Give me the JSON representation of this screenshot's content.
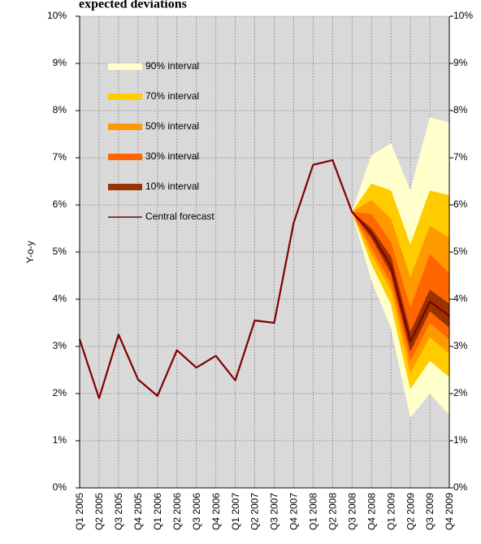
{
  "chart_data": {
    "type": "fan",
    "title": "expected deviations",
    "y_label": "Y-o-y",
    "categories": [
      "Q1 2005",
      "Q2 2005",
      "Q3 2005",
      "Q4 2005",
      "Q1 2006",
      "Q2 2006",
      "Q3 2006",
      "Q4 2006",
      "Q1 2007",
      "Q2 2007",
      "Q3 2007",
      "Q4 2007",
      "Q1 2008",
      "Q2 2008",
      "Q3 2008",
      "Q4 2008",
      "Q1 2009",
      "Q2 2009",
      "Q3 2009",
      "Q4 2009"
    ],
    "ylim": [
      0,
      10
    ],
    "yticks": [
      {
        "value": 0,
        "label": "0%"
      },
      {
        "value": 1,
        "label": "1%"
      },
      {
        "value": 2,
        "label": "2%"
      },
      {
        "value": 3,
        "label": "3%"
      },
      {
        "value": 4,
        "label": "4%"
      },
      {
        "value": 5,
        "label": "5%"
      },
      {
        "value": 6,
        "label": "6%"
      },
      {
        "value": 7,
        "label": "7%"
      },
      {
        "value": 8,
        "label": "8%"
      },
      {
        "value": 9,
        "label": "9%"
      },
      {
        "value": 10,
        "label": "10%"
      }
    ],
    "grid": true,
    "legend": "upper left",
    "intervals": [
      {
        "name": "90% interval",
        "color": "#ffffcc",
        "upper": [
          null,
          null,
          null,
          null,
          null,
          null,
          null,
          null,
          null,
          null,
          null,
          null,
          null,
          null,
          5.85,
          7.05,
          7.3,
          6.3,
          7.85,
          7.75
        ],
        "lower": [
          null,
          null,
          null,
          null,
          null,
          null,
          null,
          null,
          null,
          null,
          null,
          null,
          null,
          null,
          5.85,
          4.4,
          3.4,
          1.5,
          2.0,
          1.55
        ]
      },
      {
        "name": "70% interval",
        "color": "#ffcc00",
        "upper": [
          null,
          null,
          null,
          null,
          null,
          null,
          null,
          null,
          null,
          null,
          null,
          null,
          null,
          null,
          5.85,
          6.45,
          6.3,
          5.15,
          6.3,
          6.2
        ],
        "lower": [
          null,
          null,
          null,
          null,
          null,
          null,
          null,
          null,
          null,
          null,
          null,
          null,
          null,
          null,
          5.85,
          4.75,
          3.9,
          2.1,
          2.7,
          2.35
        ]
      },
      {
        "name": "50% interval",
        "color": "#ff9900",
        "upper": [
          null,
          null,
          null,
          null,
          null,
          null,
          null,
          null,
          null,
          null,
          null,
          null,
          null,
          null,
          5.85,
          6.1,
          5.7,
          4.45,
          5.55,
          5.3
        ],
        "lower": [
          null,
          null,
          null,
          null,
          null,
          null,
          null,
          null,
          null,
          null,
          null,
          null,
          null,
          null,
          5.85,
          4.95,
          4.2,
          2.45,
          3.2,
          2.85
        ]
      },
      {
        "name": "30% interval",
        "color": "#ff6600",
        "upper": [
          null,
          null,
          null,
          null,
          null,
          null,
          null,
          null,
          null,
          null,
          null,
          null,
          null,
          null,
          5.85,
          5.8,
          5.2,
          3.8,
          4.95,
          4.55
        ],
        "lower": [
          null,
          null,
          null,
          null,
          null,
          null,
          null,
          null,
          null,
          null,
          null,
          null,
          null,
          null,
          5.85,
          5.1,
          4.35,
          2.7,
          3.5,
          3.15
        ]
      },
      {
        "name": "10% interval",
        "color": "#993300",
        "upper": [
          null,
          null,
          null,
          null,
          null,
          null,
          null,
          null,
          null,
          null,
          null,
          null,
          null,
          null,
          5.85,
          5.5,
          4.9,
          3.3,
          4.2,
          3.9
        ],
        "lower": [
          null,
          null,
          null,
          null,
          null,
          null,
          null,
          null,
          null,
          null,
          null,
          null,
          null,
          null,
          5.85,
          5.3,
          4.55,
          2.9,
          3.75,
          3.4
        ]
      }
    ],
    "series": [
      {
        "name": "Central forecast",
        "color": "#800000",
        "values": [
          3.15,
          1.9,
          3.25,
          2.3,
          1.95,
          2.92,
          2.55,
          2.8,
          2.28,
          3.55,
          3.5,
          5.62,
          6.85,
          6.95,
          5.85,
          5.4,
          4.7,
          3.1,
          3.95,
          3.65
        ]
      }
    ]
  }
}
